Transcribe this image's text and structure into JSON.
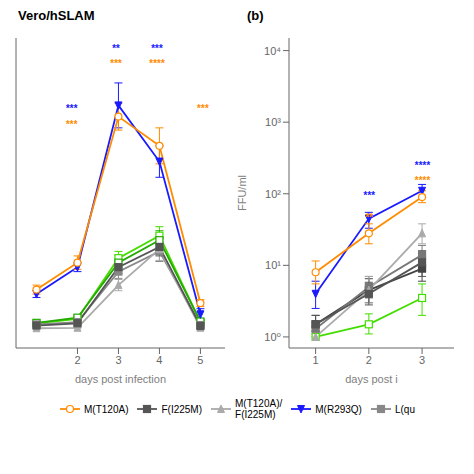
{
  "chart_data": [
    {
      "type": "line",
      "title": "Vero/hSLAM",
      "x_label": "days post infection",
      "xlim": [
        0.5,
        5.6
      ],
      "xticks": [
        2,
        3,
        4,
        5
      ],
      "ylim": [
        -8000,
        130000
      ],
      "tick_labels": "x",
      "x": [
        1,
        2,
        3,
        4,
        5
      ],
      "series": [
        {
          "name": "M(T120A)",
          "color": "#FF8C00",
          "marker": "circle-open",
          "values": [
            18000,
            30000,
            95000,
            82000,
            12000
          ],
          "errors": [
            2000,
            3000,
            6000,
            8000,
            1500
          ]
        },
        {
          "name": "F(I225M)",
          "color": "#555555",
          "marker": "square",
          "values": [
            2000,
            3000,
            28000,
            37000,
            1800
          ],
          "errors": [
            300,
            400,
            2800,
            4000,
            300
          ]
        },
        {
          "name": "M(T120A)/\nF(I225M)",
          "color": "#aaaaaa",
          "marker": "triangle-up",
          "values": [
            800,
            1000,
            20000,
            36000,
            1000
          ],
          "errors": [
            150,
            200,
            2500,
            5000,
            200
          ]
        },
        {
          "name": "M(R293Q)",
          "color": "#1a1aff",
          "marker": "triangle-down",
          "values": [
            16000,
            28000,
            100000,
            75000,
            7000
          ],
          "errors": [
            1500,
            2000,
            10000,
            7000,
            2500
          ]
        },
        {
          "name": "L(qu",
          "color": "#888888",
          "marker": "square",
          "values": [
            2500,
            3500,
            26000,
            35000,
            2200
          ],
          "errors": [
            350,
            500,
            3000,
            4500,
            350
          ]
        },
        {
          "color": "#22aa00",
          "marker": "square-open",
          "values": [
            3200,
            5500,
            30000,
            40000,
            3800
          ],
          "errors": [
            450,
            600,
            3200,
            4200,
            450
          ]
        },
        {
          "color": "#44dd00",
          "marker": "square-open",
          "values": [
            3000,
            5000,
            32000,
            42000,
            3500
          ],
          "errors": [
            400,
            500,
            3000,
            4000,
            400
          ]
        }
      ],
      "annotations": [
        {
          "x": 1.85,
          "y": 96880,
          "text": "***",
          "color": "#1a1aff"
        },
        {
          "x": 1.85,
          "y": 89980,
          "text": "***",
          "color": "#FF8C00"
        },
        {
          "x": 2.93,
          "y": 123790,
          "text": "**",
          "color": "#1a1aff"
        },
        {
          "x": 2.93,
          "y": 116890,
          "text": "***",
          "color": "#FF8C00"
        },
        {
          "x": 3.93,
          "y": 123790,
          "text": "***",
          "color": "#1a1aff"
        },
        {
          "x": 3.93,
          "y": 116890,
          "text": "****",
          "color": "#FF8C00"
        },
        {
          "x": 5.05,
          "y": 96880,
          "text": "***",
          "color": "#FF8C00"
        }
      ]
    },
    {
      "type": "line",
      "title": "(b)",
      "x_label": "days post i",
      "y_label": "FFU/ml",
      "log": "y",
      "xlim": [
        0.5,
        3.6
      ],
      "xticks": [
        1,
        2,
        3
      ],
      "ylim": [
        0.7,
        15000
      ],
      "yticks": [
        {
          "value": 1,
          "label": "10⁰"
        },
        {
          "value": 10,
          "label": "10¹"
        },
        {
          "value": 100,
          "label": "10²"
        },
        {
          "value": 1000,
          "label": "10³"
        },
        {
          "value": 10000,
          "label": "10⁴"
        }
      ],
      "x": [
        1,
        2,
        3
      ],
      "series": [
        {
          "name": "M(T120A)",
          "color": "#FF8C00",
          "marker": "circle-open",
          "values": [
            8.0,
            28.0,
            90.0
          ],
          "errors_low": [
            2.5,
            8.0,
            15.0
          ],
          "errors_high": [
            3.5,
            10.0,
            20.0
          ]
        },
        {
          "name": "F(I225M)",
          "color": "#555555",
          "marker": "square",
          "values": [
            1.5,
            4.0,
            11.0
          ],
          "errors_low": [
            0.3,
            1.2,
            4.0
          ],
          "errors_high": [
            0.5,
            1.8,
            5.0
          ]
        },
        {
          "name": "M(T120A)/\nF(I225M)",
          "color": "#aaaaaa",
          "marker": "triangle-up",
          "values": [
            1.0,
            4.5,
            28.0
          ],
          "errors_low": [
            0.0,
            1.5,
            8.0
          ],
          "errors_high": [
            0.2,
            2.5,
            10.0
          ]
        },
        {
          "name": "M(R293Q)",
          "color": "#1a1aff",
          "marker": "triangle-down",
          "values": [
            4.0,
            45.0,
            110.0
          ],
          "errors_low": [
            1.5,
            12.0,
            20.0
          ],
          "errors_high": [
            2.0,
            10.0,
            25.0
          ]
        },
        {
          "color": "#777777",
          "marker": "square",
          "values": [
            1.3,
            5.0,
            14.0
          ],
          "errors_low": [
            0.2,
            1.5,
            4.0
          ],
          "errors_high": [
            0.3,
            2.0,
            5.0
          ]
        },
        {
          "color": "#444444",
          "marker": "square",
          "values": [
            1.5,
            4.5,
            9.0
          ],
          "errors_low": [
            0.3,
            1.5,
            3.0
          ],
          "errors_high": [
            0.5,
            2.0,
            4.0
          ]
        },
        {
          "color": "#44dd00",
          "marker": "square-open",
          "values": [
            1.0,
            1.5,
            3.5
          ],
          "errors_low": [
            0.0,
            0.4,
            1.5
          ],
          "errors_high": [
            0.2,
            0.6,
            2.0
          ]
        }
      ],
      "annotations": [
        {
          "x": 2.0,
          "y": 85,
          "text": "***",
          "color": "#1a1aff"
        },
        {
          "x": 2.0,
          "y": 42,
          "text": "**",
          "color": "#FF8C00"
        },
        {
          "x": 3.0,
          "y": 220,
          "text": "****",
          "color": "#1a1aff"
        },
        {
          "x": 3.0,
          "y": 135,
          "text": "****",
          "color": "#FF8C00"
        }
      ]
    }
  ]
}
